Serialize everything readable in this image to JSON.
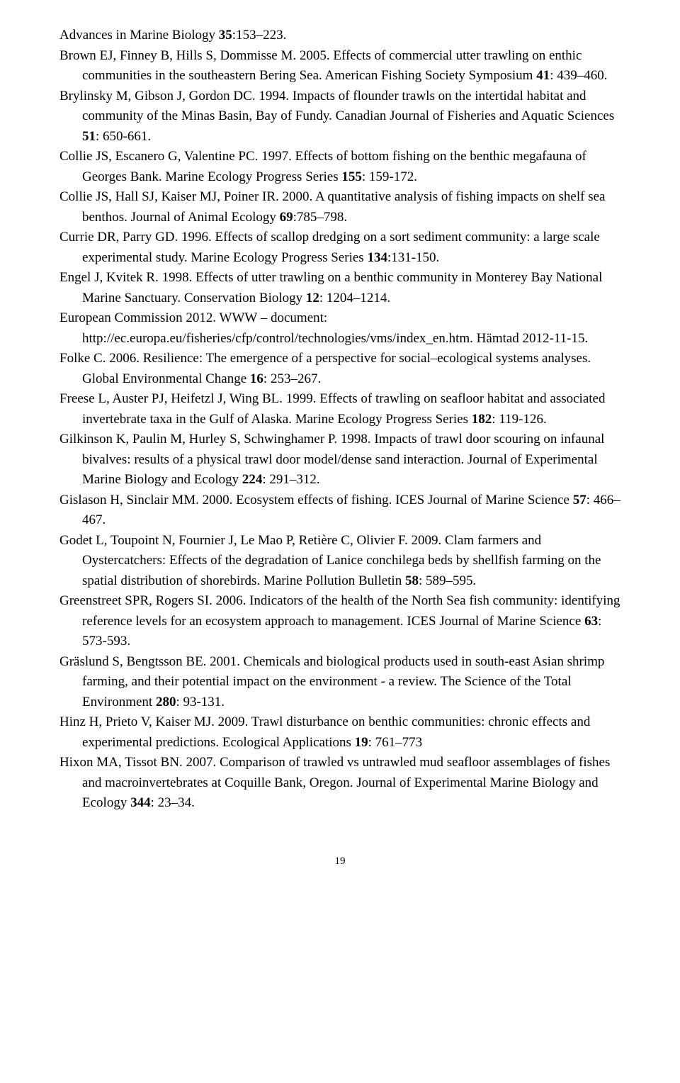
{
  "references": [
    {
      "prefix": "Advances in Marine Biology ",
      "bold": "35",
      "suffix": ":153–223."
    },
    {
      "text": "Brown EJ, Finney B, Hills S, Dommisse M. 2005. Effects of commercial utter trawling on enthic communities in the southeastern Bering Sea. American Fishing Society Symposium ",
      "bold": "41",
      "suffix": ": 439–460."
    },
    {
      "text": "Brylinsky M, Gibson J, Gordon DC. 1994. Impacts of flounder trawls on the intertidal habitat and community of the Minas Basin, Bay of Fundy. Canadian Journal of Fisheries and Aquatic Sciences ",
      "bold": "51",
      "suffix": ": 650-661."
    },
    {
      "text": "Collie JS, Escanero G, Valentine PC. 1997. Effects of bottom fishing on the benthic megafauna of Georges Bank. Marine Ecology Progress Series ",
      "bold": "155",
      "suffix": ": 159-172."
    },
    {
      "text": "Collie JS, Hall SJ, Kaiser MJ, Poiner IR. 2000. A quantitative analysis of fishing impacts on shelf sea benthos. Journal of Animal Ecology ",
      "bold": "69",
      "suffix": ":785–798."
    },
    {
      "text": "Currie DR, Parry GD. 1996. Effects of scallop dredging on a sort sediment community: a large scale experimental study. Marine Ecology Progress Series ",
      "bold": "134",
      "suffix": ":131-150."
    },
    {
      "text": "Engel J, Kvitek R. 1998. Effects of utter trawling on a benthic community in Monterey Bay National Marine Sanctuary. Conservation Biology ",
      "bold": "12",
      "suffix": ": 1204–1214."
    },
    {
      "text": "European Commission 2012. WWW – document: http://ec.europa.eu/fisheries/cfp/control/technologies/vms/index_en.htm. Hämtad 2012-11-15.",
      "bold": "",
      "suffix": ""
    },
    {
      "text": "Folke C. 2006. Resilience: The emergence of a perspective for social–ecological systems analyses. Global Environmental Change ",
      "bold": "16",
      "suffix": ": 253–267."
    },
    {
      "text": "Freese L, Auster PJ, Heifetzl J, Wing BL. 1999. Effects of trawling on seafloor habitat and associated invertebrate taxa in the Gulf of Alaska. Marine Ecology Progress Series ",
      "bold": "182",
      "suffix": ": 119-126."
    },
    {
      "text": "Gilkinson K, Paulin M, Hurley S, Schwinghamer P. 1998. Impacts of trawl door scouring on infaunal bivalves: results of a physical trawl door model/dense sand interaction. Journal of Experimental Marine Biology and Ecology ",
      "bold": "224",
      "suffix": ": 291–312."
    },
    {
      "text": "Gislason H, Sinclair MM. 2000. Ecosystem effects of fishing. ICES Journal of Marine Science ",
      "bold": "57",
      "suffix": ": 466–467."
    },
    {
      "text": "Godet L, Toupoint N, Fournier J, Le Mao P, Retière C, Olivier F. 2009. Clam farmers and Oystercatchers: Effects of the degradation of Lanice conchilega beds by shellfish farming on the spatial distribution of shorebirds. Marine Pollution Bulletin ",
      "bold": "58",
      "suffix": ": 589–595."
    },
    {
      "text": "Greenstreet SPR, Rogers SI. 2006. Indicators of the health of the North Sea fish community: identifying reference levels for an ecosystem approach to management. ICES Journal of Marine Science ",
      "bold": "63",
      "suffix": ": 573-593."
    },
    {
      "text": "Gräslund S, Bengtsson BE. 2001. Chemicals and biological products used in south-east Asian shrimp farming, and their potential impact on the environment - a review. The Science of the Total Environment ",
      "bold": "280",
      "suffix": ": 93-131."
    },
    {
      "text": "Hinz H, Prieto V, Kaiser MJ. 2009. Trawl disturbance on benthic communities: chronic effects and experimental predictions. Ecological Applications ",
      "bold": "19",
      "suffix": ": 761–773"
    },
    {
      "text": "Hixon MA, Tissot BN. 2007. Comparison of trawled vs untrawled mud seafloor assemblages of fishes and macroinvertebrates at Coquille Bank, Oregon. Journal of Experimental Marine Biology and Ecology ",
      "bold": "344",
      "suffix": ": 23–34."
    }
  ],
  "page_number": "19"
}
